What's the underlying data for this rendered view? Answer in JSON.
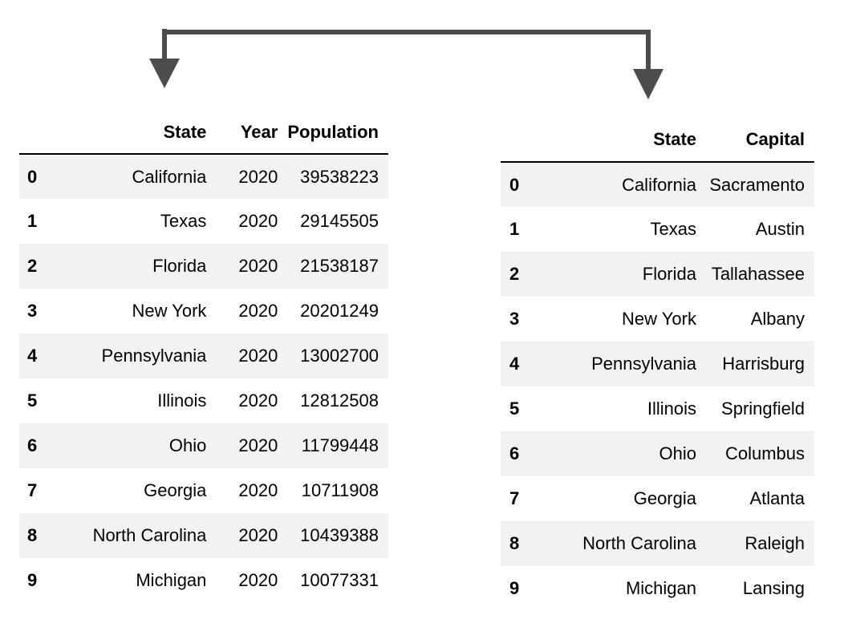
{
  "left_table": {
    "columns": [
      "",
      "State",
      "Year",
      "Population"
    ],
    "rows": [
      {
        "index": "0",
        "state": "California",
        "year": "2020",
        "population": "39538223"
      },
      {
        "index": "1",
        "state": "Texas",
        "year": "2020",
        "population": "29145505"
      },
      {
        "index": "2",
        "state": "Florida",
        "year": "2020",
        "population": "21538187"
      },
      {
        "index": "3",
        "state": "New York",
        "year": "2020",
        "population": "20201249"
      },
      {
        "index": "4",
        "state": "Pennsylvania",
        "year": "2020",
        "population": "13002700"
      },
      {
        "index": "5",
        "state": "Illinois",
        "year": "2020",
        "population": "12812508"
      },
      {
        "index": "6",
        "state": "Ohio",
        "year": "2020",
        "population": "11799448"
      },
      {
        "index": "7",
        "state": "Georgia",
        "year": "2020",
        "population": "10711908"
      },
      {
        "index": "8",
        "state": "North Carolina",
        "year": "2020",
        "population": "10439388"
      },
      {
        "index": "9",
        "state": "Michigan",
        "year": "2020",
        "population": "10077331"
      }
    ]
  },
  "right_table": {
    "columns": [
      "",
      "State",
      "Capital"
    ],
    "rows": [
      {
        "index": "0",
        "state": "California",
        "capital": "Sacramento"
      },
      {
        "index": "1",
        "state": "Texas",
        "capital": "Austin"
      },
      {
        "index": "2",
        "state": "Florida",
        "capital": "Tallahassee"
      },
      {
        "index": "3",
        "state": "New York",
        "capital": "Albany"
      },
      {
        "index": "4",
        "state": "Pennsylvania",
        "capital": "Harrisburg"
      },
      {
        "index": "5",
        "state": "Illinois",
        "capital": "Springfield"
      },
      {
        "index": "6",
        "state": "Ohio",
        "capital": "Columbus"
      },
      {
        "index": "7",
        "state": "Georgia",
        "capital": "Atlanta"
      },
      {
        "index": "8",
        "state": "North Carolina",
        "capital": "Raleigh"
      },
      {
        "index": "9",
        "state": "Michigan",
        "capital": "Lansing"
      }
    ]
  },
  "connector": {
    "icon": "bracket-arrow-icon",
    "color": "#4d4d4d"
  },
  "colors": {
    "header_rule": "#000000",
    "stripe": "#f2f2f2",
    "text": "#000000"
  }
}
